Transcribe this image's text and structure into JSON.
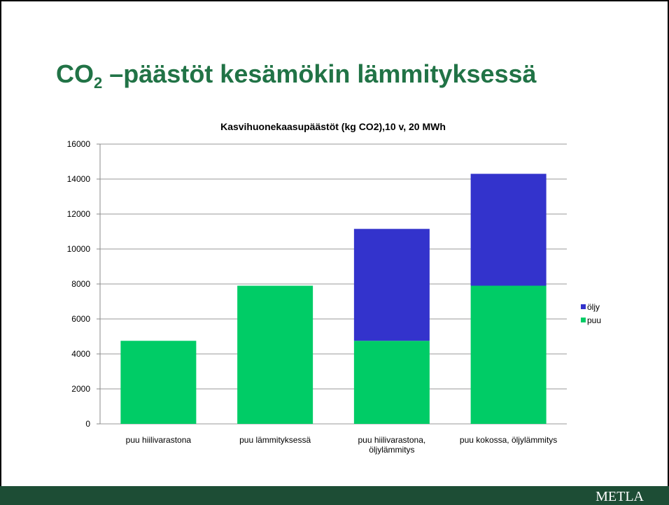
{
  "slide": {
    "title": [
      "CO",
      "2",
      " –päästöt kesämökin lämmityksessä"
    ],
    "footer": "METLA"
  },
  "chart_data": {
    "type": "stacked_bar",
    "title": "Kasvihuonekaasupäästöt (kg CO2),10 v, 20 MWh",
    "categories": [
      "puu hiilivarastona",
      "puu lämmityksessä",
      "puu hiilivarastona, öljylämmitys",
      "puu kokossa, öljylämmitys"
    ],
    "series": [
      {
        "name": "puu",
        "color": "#00cc66",
        "values": [
          4750,
          7900,
          4750,
          7900
        ]
      },
      {
        "name": "öljy",
        "color": "#3333cc",
        "values": [
          null,
          null,
          6400,
          6400
        ]
      }
    ],
    "ylim": [
      0,
      16000
    ],
    "yticks": [
      0,
      2000,
      4000,
      6000,
      8000,
      10000,
      12000,
      14000,
      16000
    ],
    "grid": true,
    "legend": "right"
  }
}
